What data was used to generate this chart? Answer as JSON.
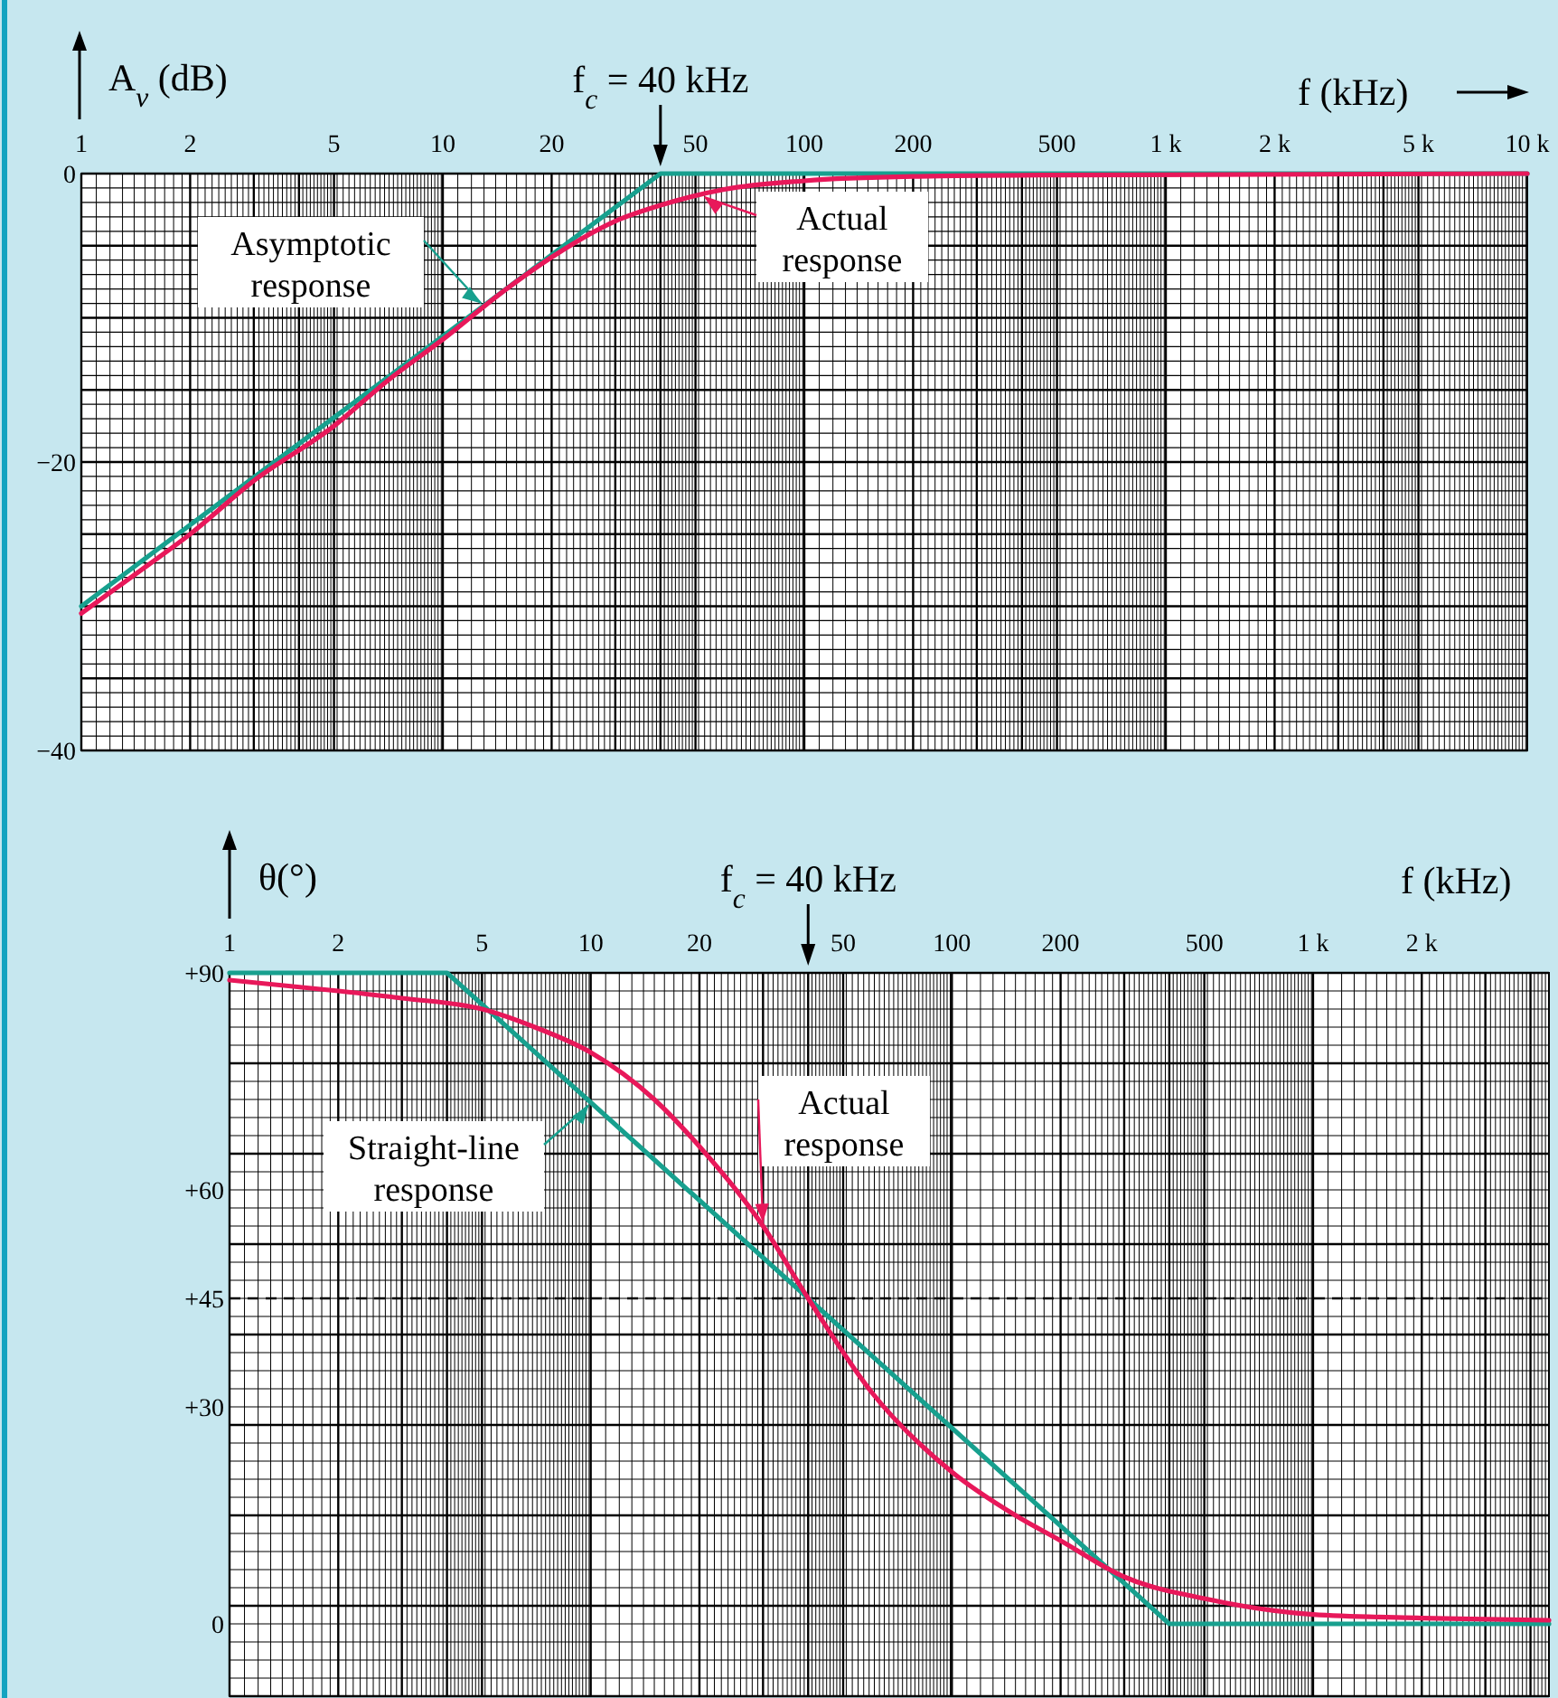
{
  "chart_data": [
    {
      "type": "line",
      "ylabel": "A$_{v}$ (dB)",
      "xlabel": "f (kHz)",
      "log": "x",
      "grid": true,
      "xlim": [
        1,
        10000
      ],
      "ylim": [
        -40,
        0
      ],
      "xticks": [
        1,
        2,
        5,
        10,
        20,
        50,
        100,
        200,
        500,
        {
          "value": 1000,
          "label": "1 k"
        },
        {
          "value": 2000,
          "label": "2 k"
        },
        {
          "value": 5000,
          "label": "5 k"
        },
        {
          "value": 10000,
          "label": "10 k"
        }
      ],
      "yticks": [
        0,
        {
          "value": -20,
          "label": "−20"
        },
        {
          "value": -40,
          "label": "−40"
        }
      ],
      "annotations": [
        "f$_{c}$ = 40 kHz"
      ],
      "series": [
        {
          "name": "Asymptotic response",
          "color": "#17a08e",
          "x": [
            1,
            40,
            10000
          ],
          "values": [
            -30,
            0,
            0
          ]
        },
        {
          "name": "Actual response",
          "color": "#e8185a",
          "x": [
            1,
            1.5,
            2,
            3,
            5,
            7,
            10,
            15,
            20,
            30,
            40,
            60,
            100,
            200,
            500,
            10000
          ],
          "values": [
            -30.5,
            -27.3,
            -25,
            -21.3,
            -17.5,
            -14.4,
            -11.5,
            -8,
            -5.8,
            -3.3,
            -2.2,
            -1.1,
            -0.5,
            -0.2,
            -0.1,
            0
          ]
        }
      ]
    },
    {
      "type": "line",
      "ylabel": "θ(°)",
      "xlabel": "f (kHz)",
      "log": "x",
      "grid": true,
      "xlim": [
        1,
        4500
      ],
      "ylim": [
        -10,
        90
      ],
      "xticks": [
        1,
        2,
        5,
        10,
        20,
        50,
        100,
        200,
        500,
        {
          "value": 1000,
          "label": "1 k"
        },
        {
          "value": 2000,
          "label": "2 k"
        }
      ],
      "yticks": [
        {
          "value": 90,
          "label": "+90"
        },
        {
          "value": 60,
          "label": "+60"
        },
        {
          "value": 45,
          "label": "+45"
        },
        {
          "value": 30,
          "label": "+30"
        },
        0
      ],
      "annotations": [
        "f$_{c}$ = 40 kHz"
      ],
      "ref_lines": [
        {
          "axis": "y",
          "value": 45,
          "line_style": "dashed"
        }
      ],
      "series": [
        {
          "name": "Straight-line response",
          "color": "#17a08e",
          "x": [
            1,
            4,
            400,
            4500
          ],
          "values": [
            90,
            90,
            0,
            0
          ]
        },
        {
          "name": "Actual response",
          "color": "#e8185a",
          "x": [
            1,
            2,
            3,
            5,
            7,
            10,
            15,
            20,
            30,
            40,
            60,
            100,
            150,
            200,
            300,
            500,
            1000,
            2000,
            4500
          ],
          "values": [
            89,
            87.5,
            86.5,
            85,
            82.5,
            79,
            72.5,
            66,
            55,
            45,
            32,
            21,
            15,
            11.5,
            6.5,
            3.5,
            1.3,
            0.8,
            0.5
          ]
        }
      ]
    }
  ]
}
